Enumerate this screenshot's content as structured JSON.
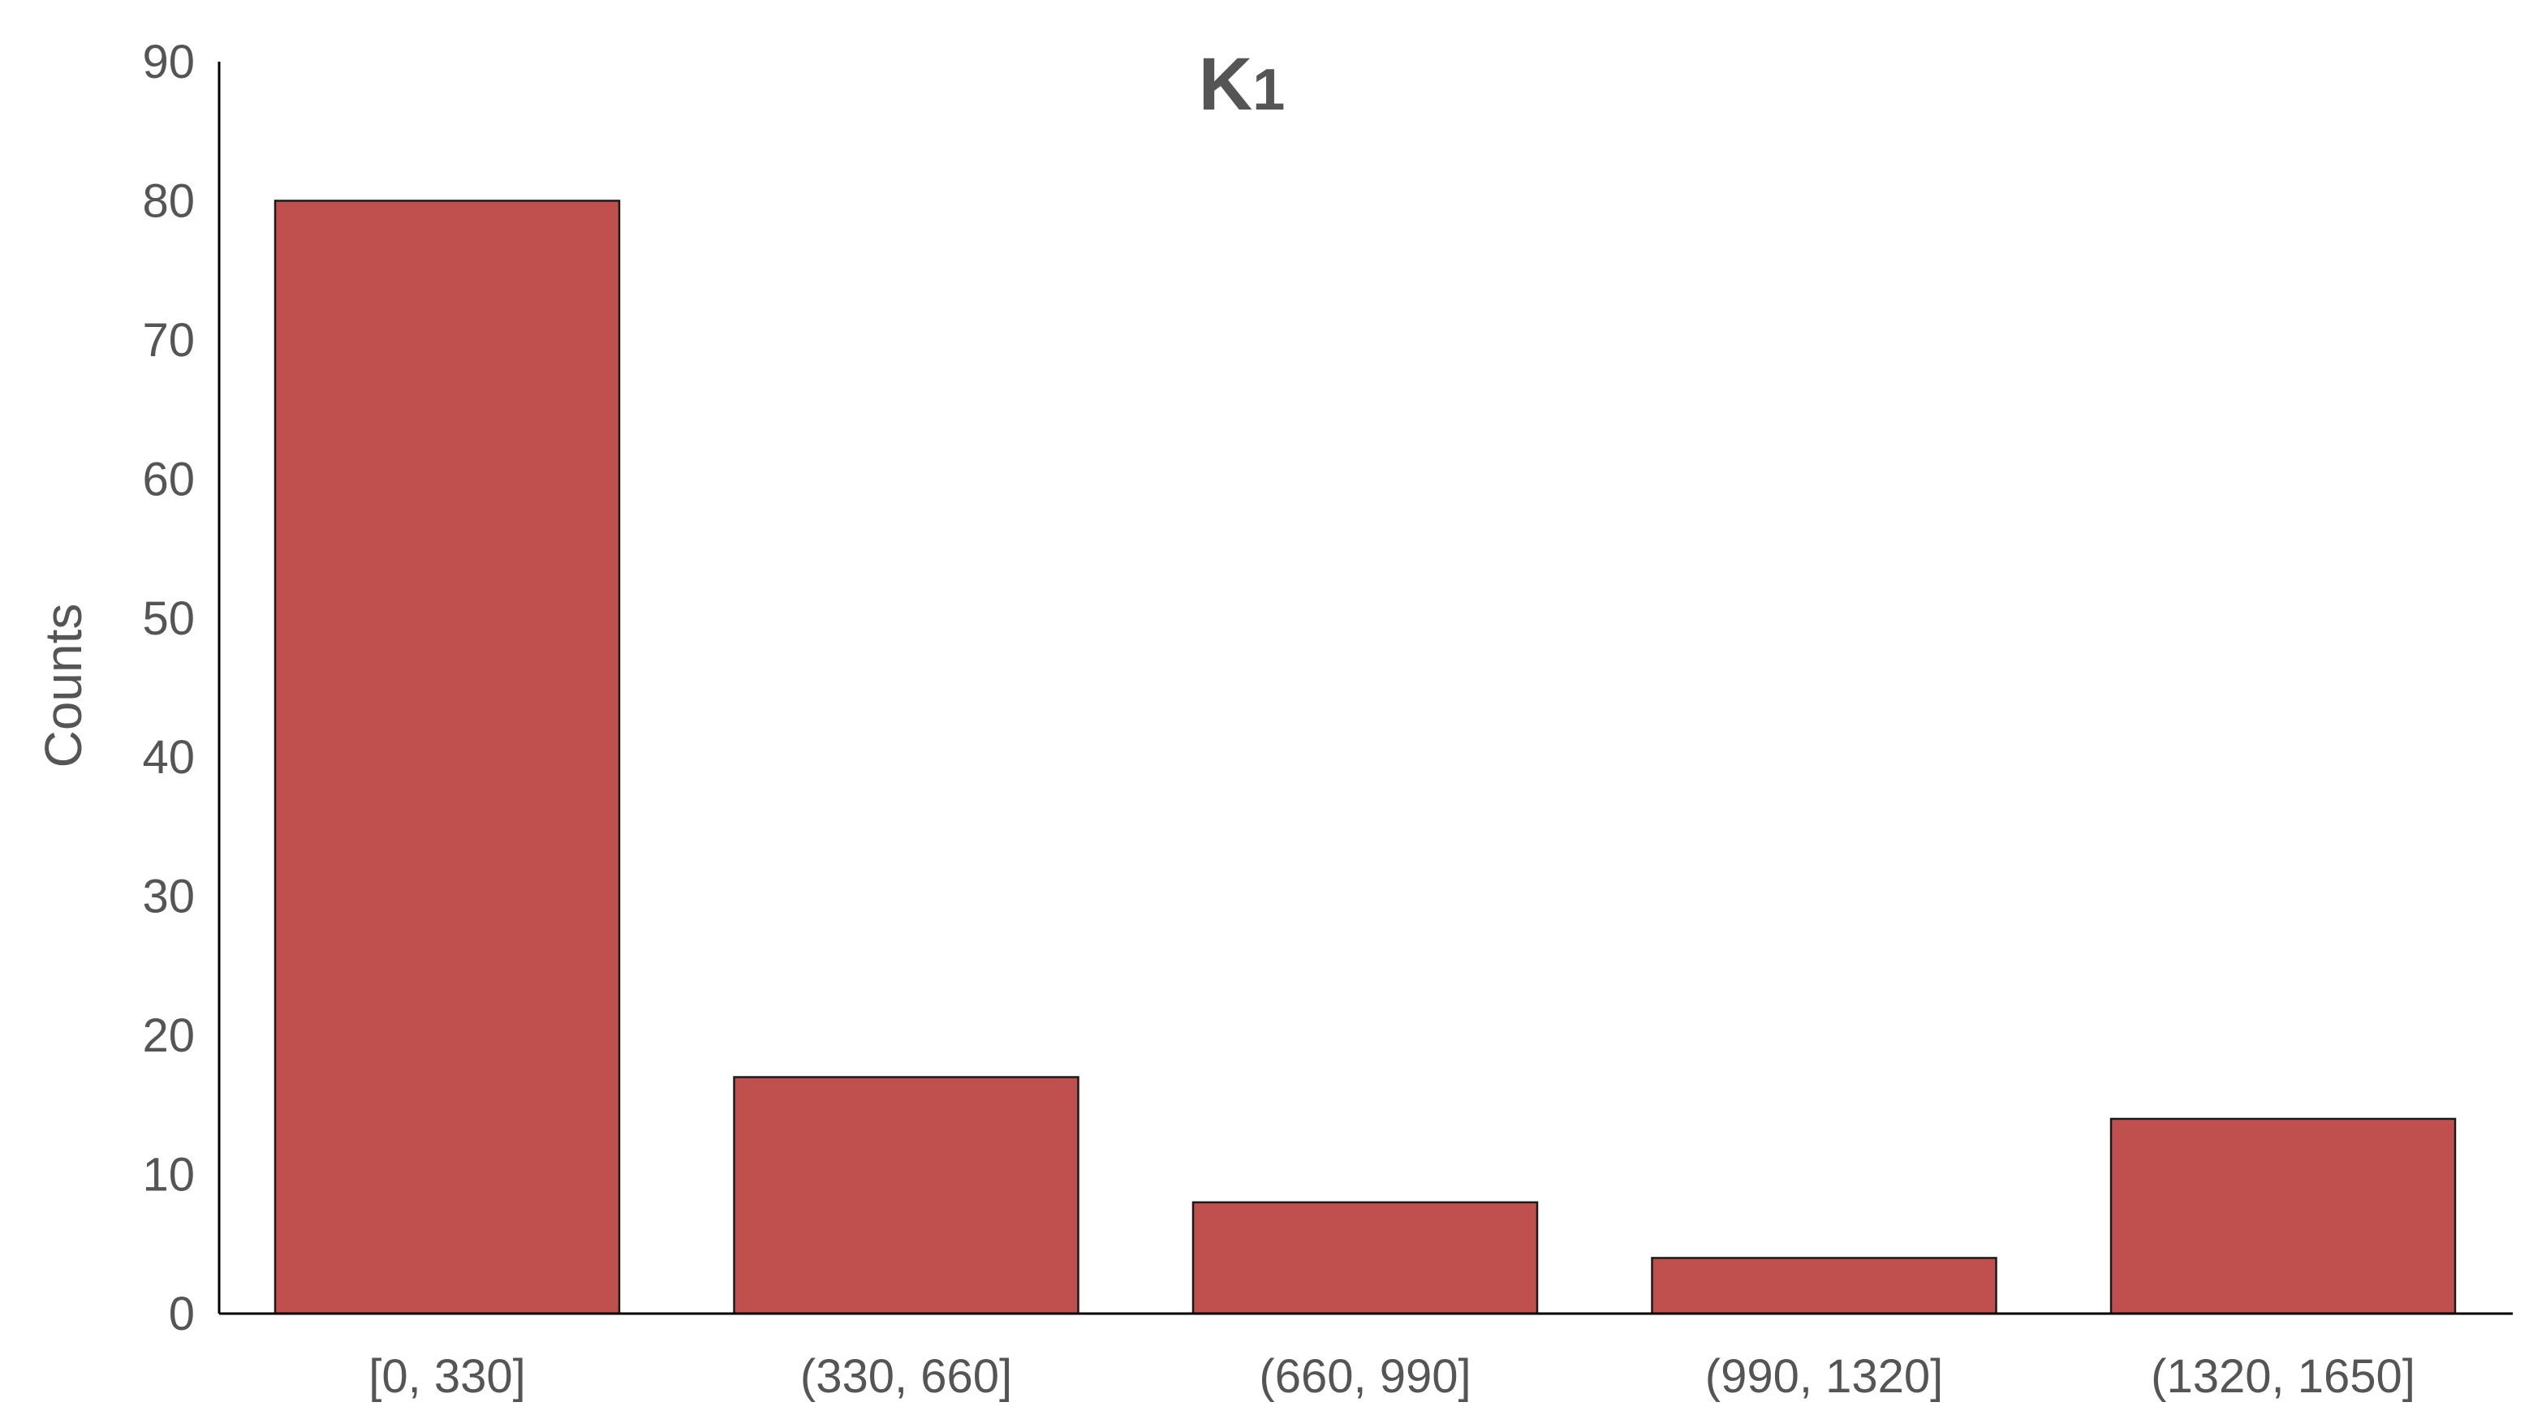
{
  "chart_data": {
    "type": "bar",
    "title": "K",
    "title_subscript": "1",
    "xlabel": "",
    "ylabel": "Counts",
    "categories": [
      "[0, 330]",
      "(330, 660]",
      "(660, 990]",
      "(990, 1320]",
      "(1320, 1650]"
    ],
    "values": [
      80,
      17,
      8,
      4,
      14
    ],
    "ylim": [
      0,
      90
    ],
    "yticks": [
      0,
      10,
      20,
      30,
      40,
      50,
      60,
      70,
      80,
      90
    ],
    "grid": false,
    "legend": "none",
    "bar_color": "#c0504d",
    "bar_edge_color": "#1a1a1a",
    "text_color": "#555555"
  }
}
